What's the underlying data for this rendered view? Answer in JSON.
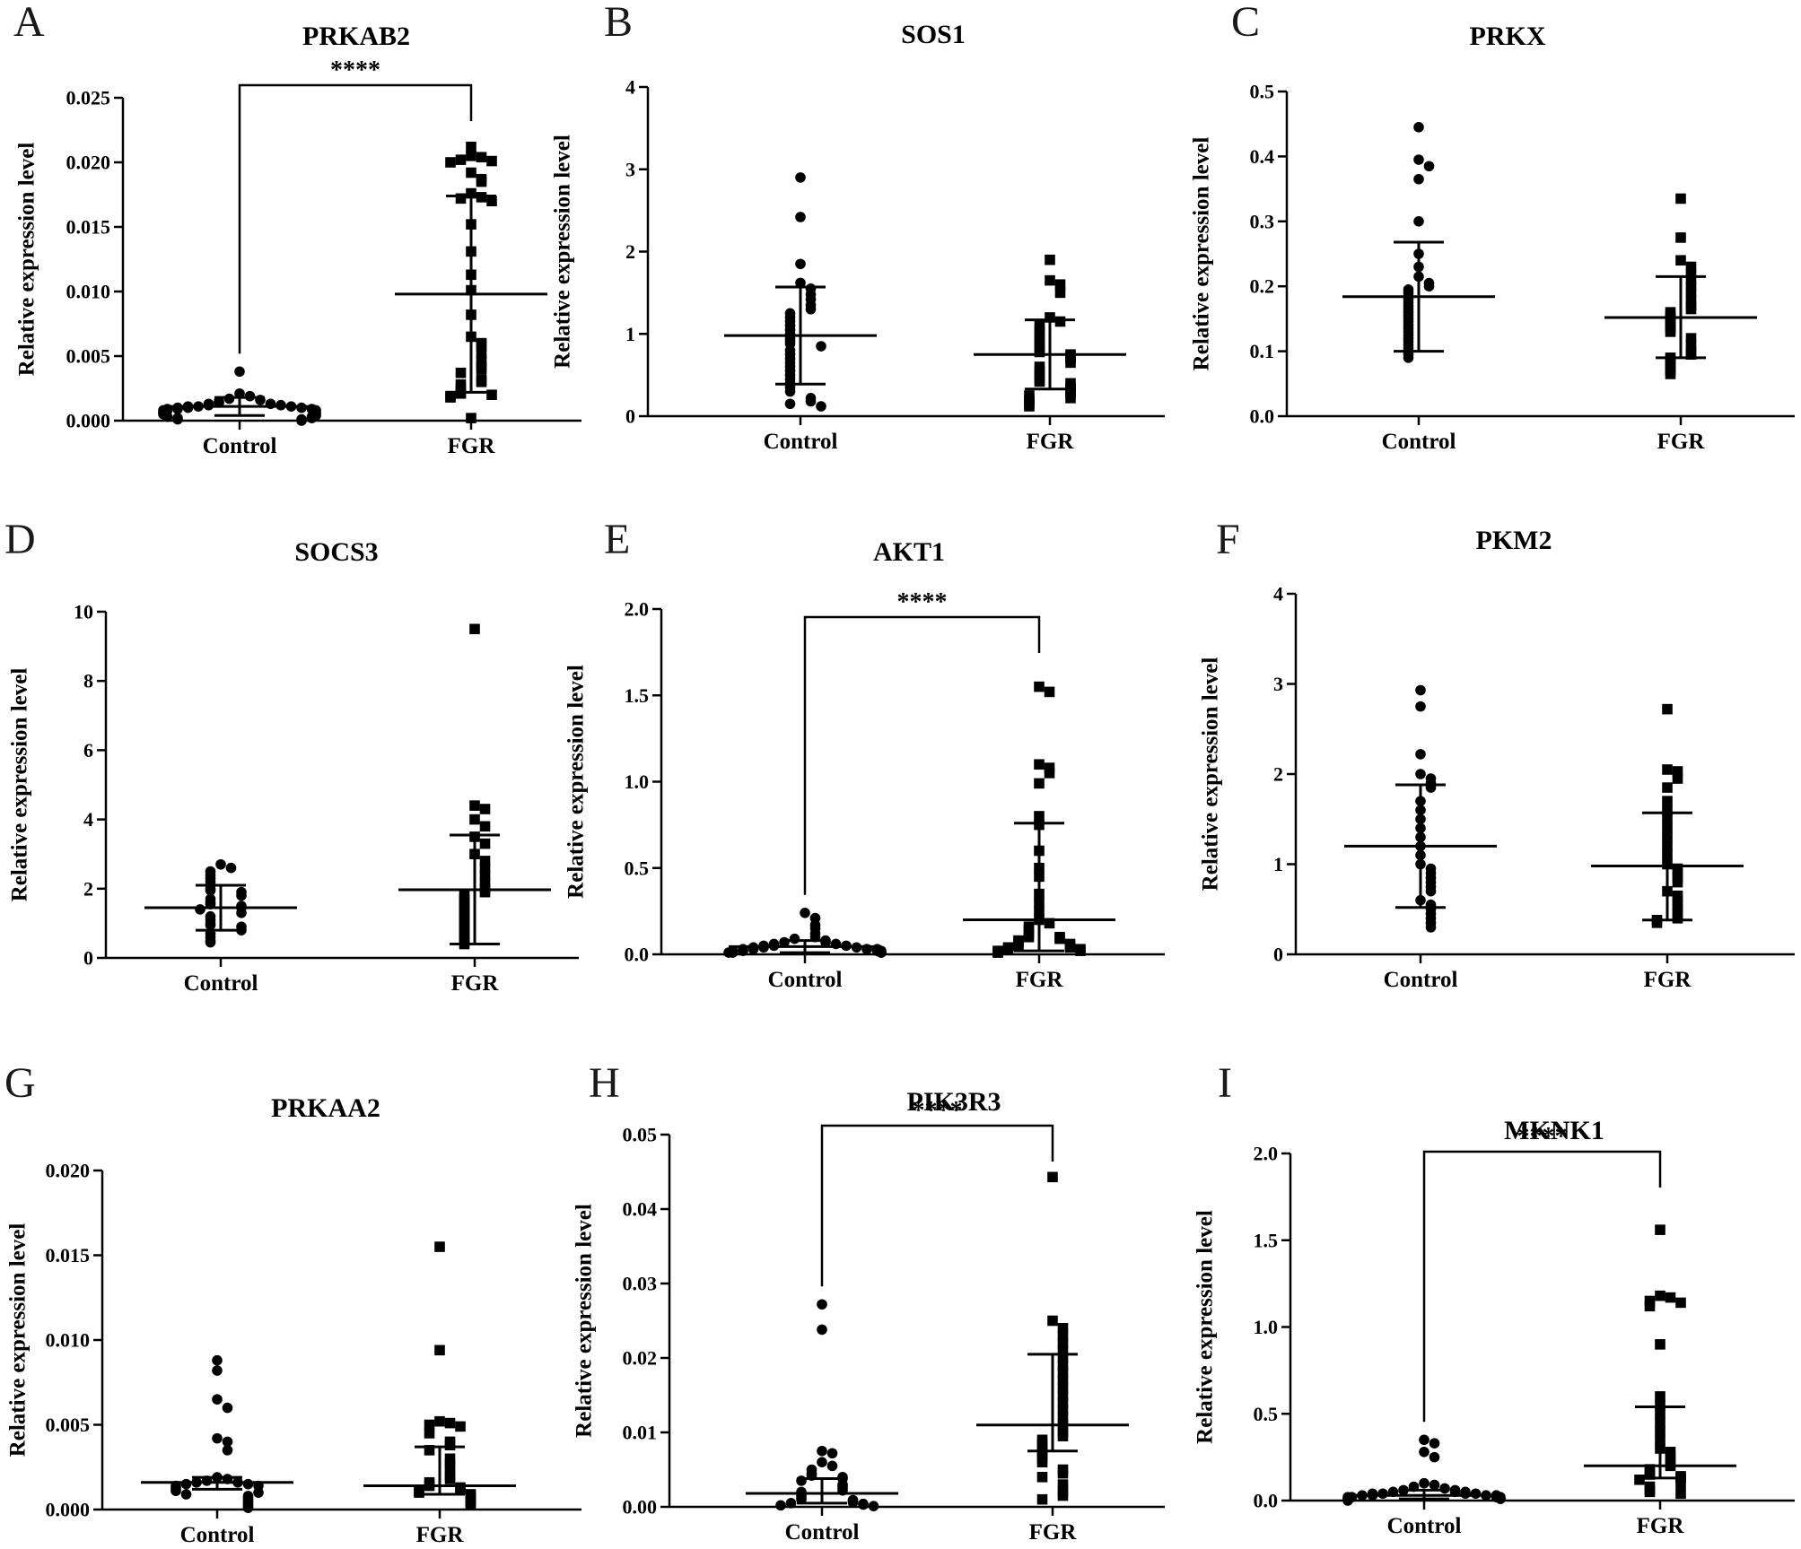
{
  "figure": {
    "y_axis_label": "Relative expression level",
    "groups": [
      "Control",
      "FGR"
    ]
  },
  "chart_data": [
    {
      "type": "scatter",
      "panel": "A",
      "title": "PRKAB2",
      "ylabel": "Relative expression level",
      "ylim": [
        0,
        0.025
      ],
      "yticks": [
        "0.000",
        "0.005",
        "0.010",
        "0.015",
        "0.020",
        "0.025"
      ],
      "categories": [
        "Control",
        "FGR"
      ],
      "significance": "****",
      "series": [
        {
          "name": "Control",
          "marker": "circle",
          "mean": 0.0011,
          "sd_low": 0.0004,
          "sd_high": 0.0018,
          "values": [
            0.0038,
            0.0021,
            0.0019,
            0.0017,
            0.0016,
            0.0015,
            0.0014,
            0.0013,
            0.0013,
            0.0012,
            0.0012,
            0.0011,
            0.0011,
            0.0011,
            0.001,
            0.001,
            0.001,
            0.0009,
            0.0009,
            0.0009,
            0.0008,
            0.0008,
            0.0008,
            0.0007,
            0.0007,
            0.0006,
            0.0006,
            0.0005,
            0.0005,
            0.0004,
            0.0003,
            0.0003,
            0.0002,
            0.0002,
            0.0001,
            0.0001,
            0.0
          ]
        },
        {
          "name": "FGR",
          "marker": "square",
          "mean": 0.0098,
          "sd_low": 0.0022,
          "sd_high": 0.0174,
          "values": [
            0.0212,
            0.0205,
            0.0204,
            0.0202,
            0.0201,
            0.02,
            0.0192,
            0.0187,
            0.0185,
            0.0176,
            0.0173,
            0.0172,
            0.017,
            0.0152,
            0.0131,
            0.0113,
            0.0101,
            0.0082,
            0.0065,
            0.006,
            0.0058,
            0.0052,
            0.0047,
            0.0042,
            0.004,
            0.0037,
            0.0032,
            0.003,
            0.0028,
            0.0025,
            0.0022,
            0.0021,
            0.002,
            0.0019,
            0.0018,
            0.0002
          ]
        }
      ]
    },
    {
      "type": "scatter",
      "panel": "B",
      "title": "SOS1",
      "ylabel": "Relative expression level",
      "ylim": [
        0,
        4
      ],
      "yticks": [
        "0",
        "1",
        "2",
        "3",
        "4"
      ],
      "categories": [
        "Control",
        "FGR"
      ],
      "significance": "",
      "series": [
        {
          "name": "Control",
          "marker": "circle",
          "mean": 0.98,
          "sd_low": 0.39,
          "sd_high": 1.57,
          "values": [
            2.9,
            2.42,
            1.85,
            1.62,
            1.55,
            1.48,
            1.42,
            1.35,
            1.3,
            1.25,
            1.2,
            1.15,
            1.1,
            1.05,
            1.0,
            0.95,
            0.92,
            0.88,
            0.85,
            0.8,
            0.75,
            0.7,
            0.65,
            0.6,
            0.55,
            0.5,
            0.45,
            0.4,
            0.35,
            0.3,
            0.22,
            0.18,
            0.15,
            0.12
          ]
        },
        {
          "name": "FGR",
          "marker": "square",
          "mean": 0.75,
          "sd_low": 0.33,
          "sd_high": 1.17,
          "values": [
            1.9,
            1.65,
            1.6,
            1.5,
            1.2,
            1.15,
            1.1,
            1.05,
            1.0,
            0.95,
            0.9,
            0.85,
            0.82,
            0.78,
            0.75,
            0.72,
            0.7,
            0.65,
            0.6,
            0.55,
            0.5,
            0.45,
            0.42,
            0.4,
            0.35,
            0.33,
            0.3,
            0.28,
            0.25,
            0.22,
            0.2,
            0.18,
            0.15,
            0.12
          ]
        }
      ]
    },
    {
      "type": "scatter",
      "panel": "C",
      "title": "PRKX",
      "ylabel": "Relative expression level",
      "ylim": [
        0,
        0.5
      ],
      "yticks": [
        "0.0",
        "0.1",
        "0.2",
        "0.3",
        "0.4",
        "0.5"
      ],
      "categories": [
        "Control",
        "FGR"
      ],
      "significance": "",
      "series": [
        {
          "name": "Control",
          "marker": "circle",
          "mean": 0.184,
          "sd_low": 0.1,
          "sd_high": 0.268,
          "values": [
            0.445,
            0.395,
            0.385,
            0.365,
            0.3,
            0.25,
            0.23,
            0.215,
            0.205,
            0.2,
            0.195,
            0.19,
            0.185,
            0.18,
            0.175,
            0.17,
            0.165,
            0.16,
            0.155,
            0.15,
            0.145,
            0.14,
            0.135,
            0.13,
            0.125,
            0.12,
            0.115,
            0.11,
            0.105,
            0.1,
            0.095,
            0.09
          ]
        },
        {
          "name": "FGR",
          "marker": "square",
          "mean": 0.152,
          "sd_low": 0.09,
          "sd_high": 0.215,
          "values": [
            0.335,
            0.275,
            0.24,
            0.23,
            0.22,
            0.21,
            0.2,
            0.19,
            0.18,
            0.17,
            0.165,
            0.16,
            0.155,
            0.15,
            0.145,
            0.14,
            0.135,
            0.13,
            0.12,
            0.11,
            0.1,
            0.095,
            0.09,
            0.085,
            0.08,
            0.075,
            0.07,
            0.065
          ]
        }
      ]
    },
    {
      "type": "scatter",
      "panel": "D",
      "title": "SOCS3",
      "ylabel": "Relative expression level",
      "ylim": [
        0,
        10
      ],
      "yticks": [
        "0",
        "2",
        "4",
        "6",
        "8",
        "10"
      ],
      "categories": [
        "Control",
        "FGR"
      ],
      "significance": "",
      "series": [
        {
          "name": "Control",
          "marker": "circle",
          "mean": 1.45,
          "sd_low": 0.8,
          "sd_high": 2.1,
          "values": [
            2.7,
            2.6,
            2.5,
            2.4,
            2.3,
            2.2,
            2.1,
            2.0,
            1.95,
            1.9,
            1.8,
            1.7,
            1.6,
            1.55,
            1.5,
            1.45,
            1.4,
            1.3,
            1.2,
            1.1,
            1.0,
            0.95,
            0.9,
            0.8,
            0.7,
            0.6,
            0.5,
            0.45
          ]
        },
        {
          "name": "FGR",
          "marker": "square",
          "mean": 1.97,
          "sd_low": 0.4,
          "sd_high": 3.55,
          "values": [
            9.5,
            4.4,
            4.3,
            4.0,
            3.8,
            3.5,
            3.3,
            3.0,
            2.8,
            2.6,
            2.4,
            2.2,
            2.0,
            1.9,
            1.8,
            1.7,
            1.6,
            1.5,
            1.4,
            1.3,
            1.2,
            1.1,
            1.0,
            0.9,
            0.8,
            0.7,
            0.6,
            0.5,
            0.4
          ]
        }
      ]
    },
    {
      "type": "scatter",
      "panel": "E",
      "title": "AKT1",
      "ylabel": "Relative expression level",
      "ylim": [
        0,
        2.0
      ],
      "yticks": [
        "0.0",
        "0.5",
        "1.0",
        "1.5",
        "2.0"
      ],
      "categories": [
        "Control",
        "FGR"
      ],
      "significance": "****",
      "series": [
        {
          "name": "Control",
          "marker": "circle",
          "mean": 0.045,
          "sd_low": 0.01,
          "sd_high": 0.08,
          "values": [
            0.24,
            0.21,
            0.17,
            0.15,
            0.12,
            0.1,
            0.09,
            0.08,
            0.07,
            0.07,
            0.06,
            0.06,
            0.05,
            0.05,
            0.05,
            0.04,
            0.04,
            0.04,
            0.03,
            0.03,
            0.03,
            0.03,
            0.02,
            0.02,
            0.02,
            0.02,
            0.01,
            0.01,
            0.01,
            0.01
          ]
        },
        {
          "name": "FGR",
          "marker": "square",
          "mean": 0.2,
          "sd_low": 0.02,
          "sd_high": 0.76,
          "values": [
            1.55,
            1.52,
            1.1,
            1.08,
            1.05,
            0.99,
            0.8,
            0.75,
            0.6,
            0.5,
            0.45,
            0.35,
            0.3,
            0.25,
            0.2,
            0.18,
            0.16,
            0.14,
            0.12,
            0.1,
            0.1,
            0.09,
            0.08,
            0.07,
            0.06,
            0.05,
            0.05,
            0.04,
            0.04,
            0.03,
            0.03,
            0.02,
            0.02,
            0.01
          ]
        }
      ]
    },
    {
      "type": "scatter",
      "panel": "F",
      "title": "PKM2",
      "ylabel": "Relative expression level",
      "ylim": [
        0,
        4
      ],
      "yticks": [
        "0",
        "1",
        "2",
        "3",
        "4"
      ],
      "categories": [
        "Control",
        "FGR"
      ],
      "significance": "",
      "series": [
        {
          "name": "Control",
          "marker": "circle",
          "mean": 1.2,
          "sd_low": 0.52,
          "sd_high": 1.88,
          "values": [
            2.93,
            2.75,
            2.22,
            2.0,
            1.95,
            1.9,
            1.85,
            1.7,
            1.6,
            1.5,
            1.4,
            1.3,
            1.2,
            1.1,
            1.0,
            0.95,
            0.9,
            0.85,
            0.8,
            0.75,
            0.7,
            0.6,
            0.55,
            0.5,
            0.45,
            0.4,
            0.35,
            0.3
          ]
        },
        {
          "name": "FGR",
          "marker": "square",
          "mean": 0.98,
          "sd_low": 0.38,
          "sd_high": 1.57,
          "values": [
            2.72,
            2.05,
            2.03,
            1.95,
            1.85,
            1.7,
            1.6,
            1.5,
            1.4,
            1.3,
            1.2,
            1.1,
            1.0,
            0.95,
            0.9,
            0.85,
            0.8,
            0.7,
            0.65,
            0.6,
            0.55,
            0.5,
            0.45,
            0.4,
            0.38,
            0.35
          ]
        }
      ]
    },
    {
      "type": "scatter",
      "panel": "G",
      "title": "PRKAA2",
      "ylabel": "Relative expression level",
      "ylim": [
        0,
        0.02
      ],
      "yticks": [
        "0.000",
        "0.005",
        "0.010",
        "0.015",
        "0.020"
      ],
      "categories": [
        "Control",
        "FGR"
      ],
      "significance": "",
      "series": [
        {
          "name": "Control",
          "marker": "circle",
          "mean": 0.0016,
          "sd_low": 0.0012,
          "sd_high": 0.0019,
          "values": [
            0.0088,
            0.0082,
            0.0065,
            0.006,
            0.0042,
            0.004,
            0.0035,
            0.0019,
            0.0018,
            0.0017,
            0.0016,
            0.0016,
            0.0015,
            0.0015,
            0.0014,
            0.0014,
            0.0013,
            0.0012,
            0.0011,
            0.001,
            0.0009,
            0.0008,
            0.0007,
            0.0006,
            0.0005,
            0.0004,
            0.0003,
            0.0002,
            0.0001
          ]
        },
        {
          "name": "FGR",
          "marker": "square",
          "mean": 0.0014,
          "sd_low": 0.0009,
          "sd_high": 0.0037,
          "values": [
            0.0155,
            0.0094,
            0.0052,
            0.0051,
            0.005,
            0.0049,
            0.0045,
            0.004,
            0.0038,
            0.0035,
            0.003,
            0.0027,
            0.0024,
            0.002,
            0.0018,
            0.0016,
            0.0014,
            0.0013,
            0.0012,
            0.0011,
            0.001,
            0.0009,
            0.0008,
            0.0007,
            0.0006,
            0.0005,
            0.0004,
            0.0003
          ]
        }
      ]
    },
    {
      "type": "scatter",
      "panel": "H",
      "title": "PIK3R3",
      "ylabel": "Relative expression level",
      "ylim": [
        0,
        0.05
      ],
      "yticks": [
        "0.00",
        "0.01",
        "0.02",
        "0.03",
        "0.04",
        "0.05"
      ],
      "categories": [
        "Control",
        "FGR"
      ],
      "significance": "****",
      "series": [
        {
          "name": "Control",
          "marker": "circle",
          "mean": 0.0018,
          "sd_low": 0.0005,
          "sd_high": 0.0038,
          "values": [
            0.0272,
            0.0238,
            0.0075,
            0.0072,
            0.006,
            0.0055,
            0.005,
            0.0045,
            0.0042,
            0.004,
            0.0038,
            0.0035,
            0.003,
            0.0028,
            0.0025,
            0.0022,
            0.002,
            0.0018,
            0.0015,
            0.0012,
            0.001,
            0.0009,
            0.0008,
            0.0006,
            0.0005,
            0.0004,
            0.0003,
            0.0002,
            0.0001
          ]
        },
        {
          "name": "FGR",
          "marker": "square",
          "mean": 0.011,
          "sd_low": 0.0075,
          "sd_high": 0.0205,
          "values": [
            0.0443,
            0.025,
            0.024,
            0.023,
            0.022,
            0.021,
            0.02,
            0.019,
            0.018,
            0.017,
            0.016,
            0.015,
            0.014,
            0.013,
            0.012,
            0.011,
            0.01,
            0.0095,
            0.009,
            0.0085,
            0.008,
            0.0075,
            0.007,
            0.0065,
            0.006,
            0.005,
            0.0045,
            0.004,
            0.003,
            0.002,
            0.0015,
            0.001
          ]
        }
      ]
    },
    {
      "type": "scatter",
      "panel": "I",
      "title": "MKNK1",
      "ylabel": "Relative expression level",
      "ylim": [
        0,
        2.0
      ],
      "yticks": [
        "0.0",
        "0.5",
        "1.0",
        "1.5",
        "2.0"
      ],
      "categories": [
        "Control",
        "FGR"
      ],
      "significance": "****",
      "series": [
        {
          "name": "Control",
          "marker": "circle",
          "mean": 0.03,
          "sd_low": 0.01,
          "sd_high": 0.06,
          "values": [
            0.35,
            0.33,
            0.28,
            0.25,
            0.1,
            0.09,
            0.08,
            0.07,
            0.06,
            0.06,
            0.05,
            0.05,
            0.05,
            0.04,
            0.04,
            0.04,
            0.04,
            0.03,
            0.03,
            0.03,
            0.03,
            0.02,
            0.02,
            0.02,
            0.02,
            0.01,
            0.01,
            0.01,
            0.01,
            0.0
          ]
        },
        {
          "name": "FGR",
          "marker": "square",
          "mean": 0.2,
          "sd_low": 0.13,
          "sd_high": 0.54,
          "values": [
            1.56,
            1.18,
            1.17,
            1.15,
            1.14,
            1.12,
            0.9,
            0.6,
            0.55,
            0.5,
            0.45,
            0.4,
            0.35,
            0.3,
            0.28,
            0.25,
            0.22,
            0.2,
            0.18,
            0.16,
            0.15,
            0.14,
            0.13,
            0.12,
            0.1,
            0.08,
            0.06,
            0.05,
            0.04
          ]
        }
      ]
    }
  ]
}
